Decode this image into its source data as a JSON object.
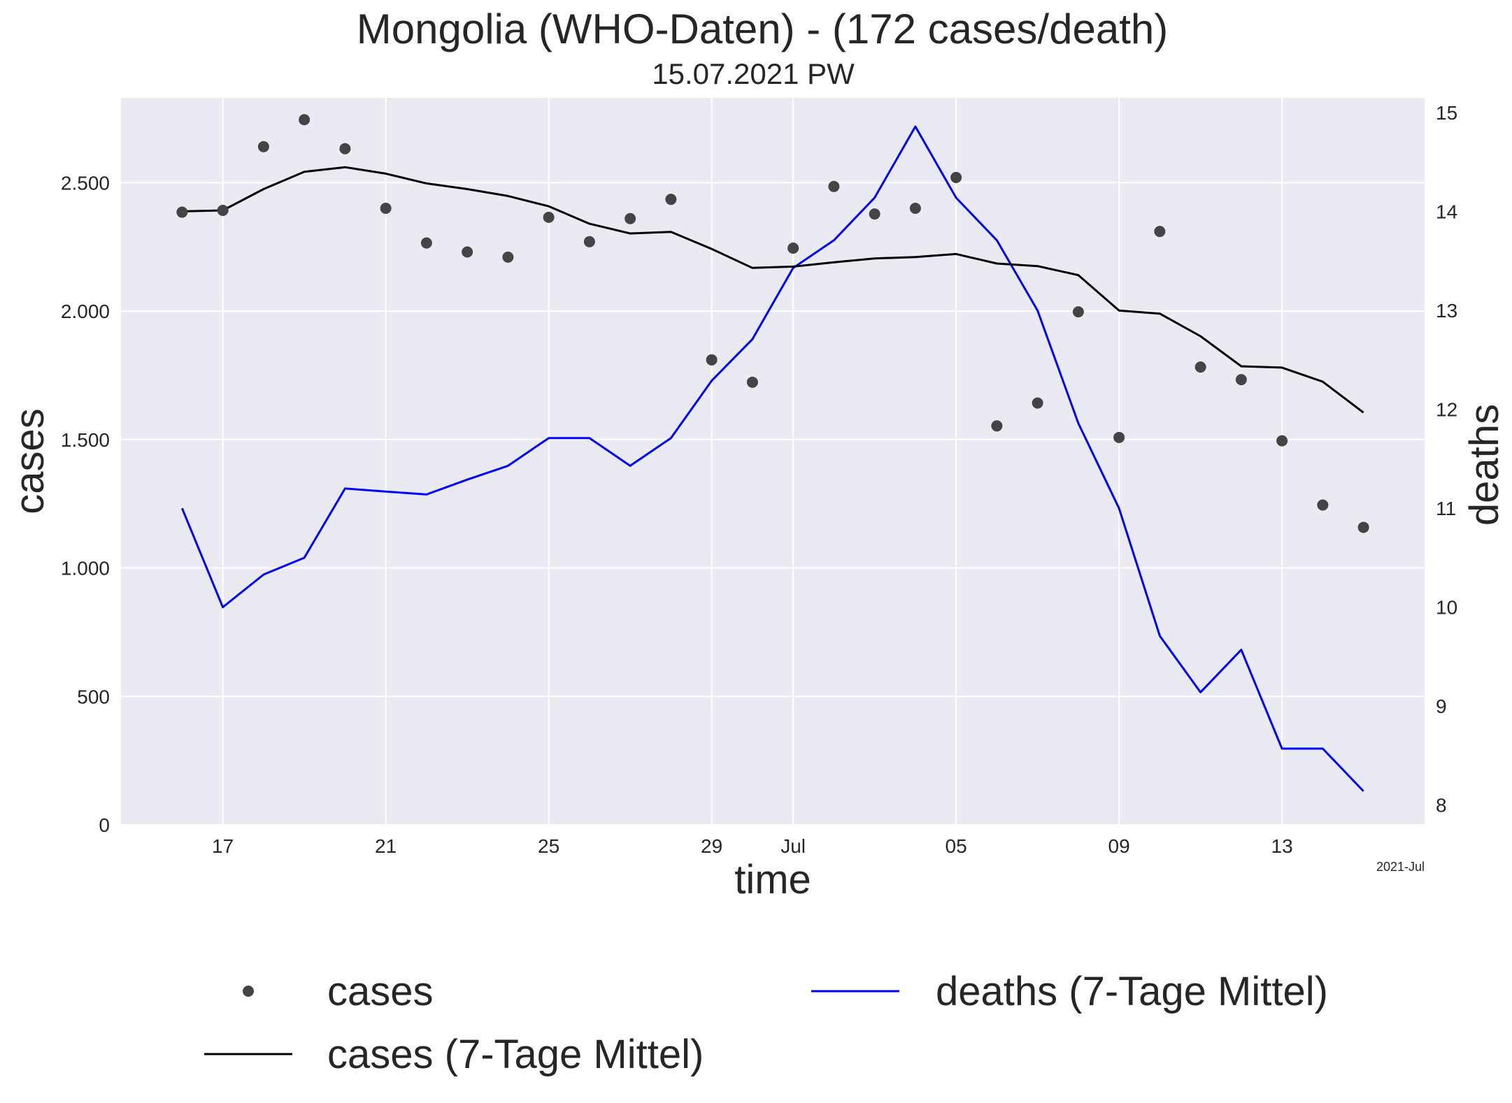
{
  "chart_data": {
    "type": "line",
    "title": "Mongolia (WHO-Daten) - (172 cases/death)",
    "subtitle": "15.07.2021 PW",
    "xlabel": "time",
    "ylabel_left": "cases",
    "ylabel_right": "deaths",
    "x_offset_label": "2021-Jul",
    "colors": {
      "background": "#eaeaf2",
      "grid": "#ffffff",
      "cases_points": "#444444",
      "cases_avg": "#000000",
      "deaths_avg": "#0000ff",
      "right_label": "#0000ff"
    },
    "x_dates": [
      "2021-06-16",
      "2021-06-17",
      "2021-06-18",
      "2021-06-19",
      "2021-06-20",
      "2021-06-21",
      "2021-06-22",
      "2021-06-23",
      "2021-06-24",
      "2021-06-25",
      "2021-06-26",
      "2021-06-27",
      "2021-06-28",
      "2021-06-29",
      "2021-06-30",
      "2021-07-01",
      "2021-07-02",
      "2021-07-03",
      "2021-07-04",
      "2021-07-05",
      "2021-07-06",
      "2021-07-07",
      "2021-07-08",
      "2021-07-09",
      "2021-07-10",
      "2021-07-11",
      "2021-07-12",
      "2021-07-13",
      "2021-07-14",
      "2021-07-15"
    ],
    "x_ticks": [
      {
        "date": "2021-06-17",
        "label": "17"
      },
      {
        "date": "2021-06-21",
        "label": "21"
      },
      {
        "date": "2021-06-25",
        "label": "25"
      },
      {
        "date": "2021-06-29",
        "label": "29"
      },
      {
        "date": "2021-07-01",
        "label": "Jul"
      },
      {
        "date": "2021-07-05",
        "label": "05"
      },
      {
        "date": "2021-07-09",
        "label": "09"
      },
      {
        "date": "2021-07-13",
        "label": "13"
      }
    ],
    "x_range": [
      "2021-06-14.5",
      "2021-07-16.5"
    ],
    "y_left": {
      "range": [
        0,
        2830
      ],
      "ticks": [
        0,
        500,
        1000,
        1500,
        2000,
        2500
      ],
      "tick_labels": [
        "0",
        "500",
        "1.000",
        "1.500",
        "2.000",
        "2.500"
      ]
    },
    "y_right": {
      "range": [
        7.8,
        15.15
      ],
      "ticks": [
        8,
        9,
        10,
        11,
        12,
        13,
        14,
        15
      ],
      "tick_labels": [
        "8",
        "9",
        "10",
        "11",
        "12",
        "13",
        "14",
        "15"
      ]
    },
    "series": [
      {
        "name": "cases",
        "kind": "scatter",
        "axis": "left",
        "values": [
          2385,
          2392,
          2640,
          2745,
          2632,
          2400,
          2265,
          2230,
          2210,
          2365,
          2270,
          2360,
          2435,
          1810,
          1723,
          2245,
          2485,
          2378,
          2400,
          2520,
          1553,
          1642,
          1997,
          1508,
          2310,
          1782,
          1733,
          1495,
          1245,
          1158
        ]
      },
      {
        "name": "cases (7-Tage Mittel)",
        "kind": "line",
        "axis": "left",
        "values": [
          2388,
          2392,
          2475,
          2542,
          2560,
          2535,
          2497,
          2475,
          2448,
          2408,
          2340,
          2302,
          2308,
          2242,
          2168,
          2173,
          2190,
          2205,
          2210,
          2222,
          2185,
          2175,
          2140,
          2002,
          1990,
          1902,
          1785,
          1780,
          1725,
          1605
        ]
      },
      {
        "name": "deaths (7-Tage Mittel)",
        "kind": "line",
        "axis": "right",
        "values": [
          11.0,
          10.0,
          10.33,
          10.5,
          11.2,
          11.17,
          11.14,
          11.29,
          11.43,
          11.71,
          11.71,
          11.43,
          11.71,
          12.29,
          12.71,
          13.43,
          13.71,
          14.14,
          14.86,
          14.14,
          13.71,
          13.0,
          11.86,
          11.0,
          9.71,
          9.14,
          9.57,
          8.57,
          8.57,
          8.14
        ]
      }
    ],
    "legend": {
      "placement": "below",
      "entries": [
        "cases",
        "cases (7-Tage Mittel)",
        "deaths (7-Tage Mittel)"
      ]
    },
    "grid": true
  }
}
